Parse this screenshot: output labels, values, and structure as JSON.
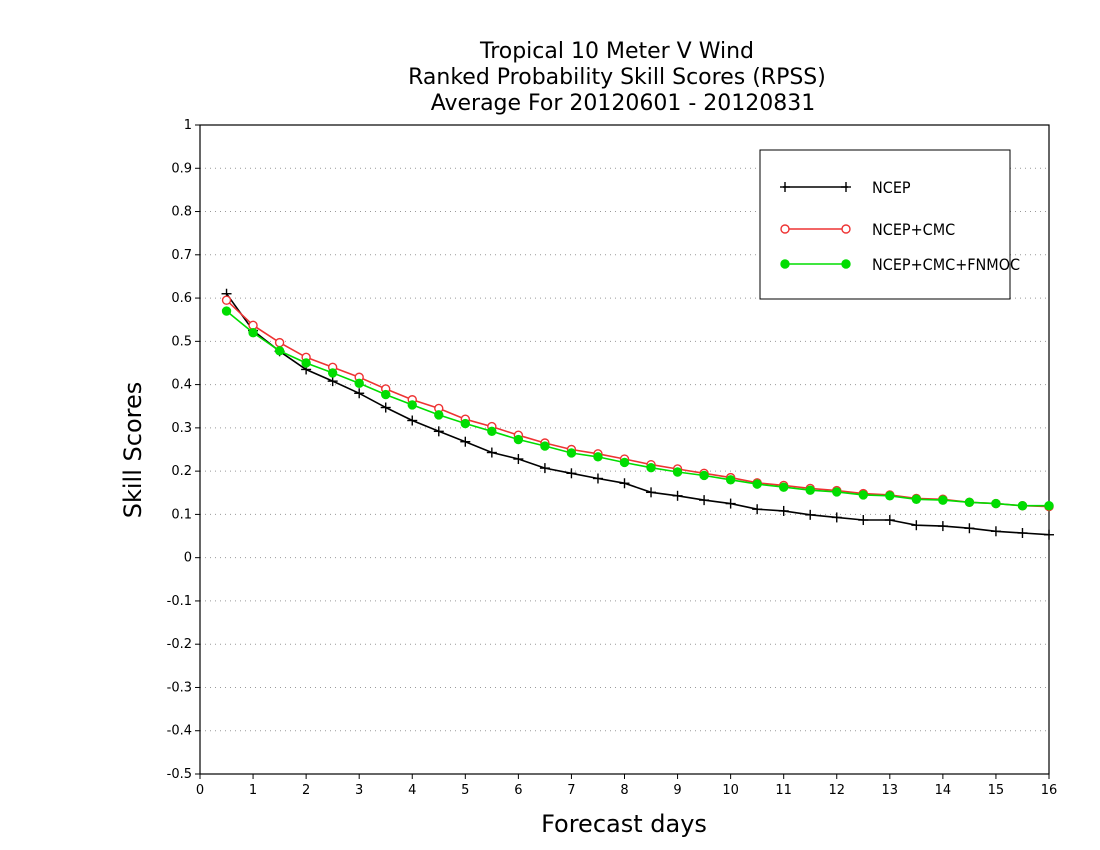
{
  "chart_data": {
    "type": "line",
    "title": [
      "Tropical 10 Meter V Wind",
      "Ranked Probability Skill Scores (RPSS)",
      "Average For 20120601 - 20120831"
    ],
    "xlabel": "Forecast days",
    "ylabel": "Skill Scores",
    "xlim": [
      0,
      16
    ],
    "ylim": [
      -0.5,
      1
    ],
    "xticks": [
      "0",
      "1",
      "2",
      "3",
      "4",
      "5",
      "6",
      "7",
      "8",
      "9",
      "10",
      "11",
      "12",
      "13",
      "14",
      "15",
      "16"
    ],
    "yticks": [
      "-0.5",
      "-0.4",
      "-0.3",
      "-0.2",
      "-0.1",
      "0",
      "0.1",
      "0.2",
      "0.3",
      "0.4",
      "0.5",
      "0.6",
      "0.7",
      "0.8",
      "0.9",
      "1"
    ],
    "grid": "horizontal dotted",
    "legend_position": "top-right",
    "x": [
      0.5,
      1,
      1.5,
      2,
      2.5,
      3,
      3.5,
      4,
      4.5,
      5,
      5.5,
      6,
      6.5,
      7,
      7.5,
      8,
      8.5,
      9,
      9.5,
      10,
      10.5,
      11,
      11.5,
      12,
      12.5,
      13,
      13.5,
      14,
      14.5,
      15,
      15.5,
      16
    ],
    "series": [
      {
        "name": "NCEP",
        "color": "#000000",
        "marker": "plus",
        "values": [
          0.61,
          0.525,
          0.477,
          0.435,
          0.408,
          0.38,
          0.347,
          0.317,
          0.292,
          0.268,
          0.243,
          0.228,
          0.207,
          0.195,
          0.183,
          0.172,
          0.151,
          0.143,
          0.133,
          0.125,
          0.112,
          0.108,
          0.099,
          0.093,
          0.087,
          0.087,
          0.075,
          0.073,
          0.068,
          0.061,
          0.057,
          0.053
        ]
      },
      {
        "name": "NCEP+CMC",
        "color": "#ee3333",
        "marker": "open-circle",
        "values": [
          0.595,
          0.537,
          0.497,
          0.463,
          0.44,
          0.417,
          0.39,
          0.365,
          0.345,
          0.32,
          0.303,
          0.283,
          0.265,
          0.25,
          0.24,
          0.228,
          0.215,
          0.205,
          0.195,
          0.185,
          0.173,
          0.167,
          0.16,
          0.155,
          0.148,
          0.145,
          0.137,
          0.135,
          0.128,
          0.125,
          0.12,
          0.118
        ]
      },
      {
        "name": "NCEP+CMC+FNMOC",
        "color": "#00dd00",
        "marker": "filled-circle",
        "values": [
          0.57,
          0.52,
          0.478,
          0.45,
          0.427,
          0.403,
          0.377,
          0.353,
          0.33,
          0.31,
          0.292,
          0.273,
          0.258,
          0.242,
          0.233,
          0.22,
          0.208,
          0.198,
          0.19,
          0.18,
          0.17,
          0.163,
          0.156,
          0.152,
          0.145,
          0.143,
          0.135,
          0.133,
          0.128,
          0.125,
          0.12,
          0.12
        ]
      }
    ]
  }
}
